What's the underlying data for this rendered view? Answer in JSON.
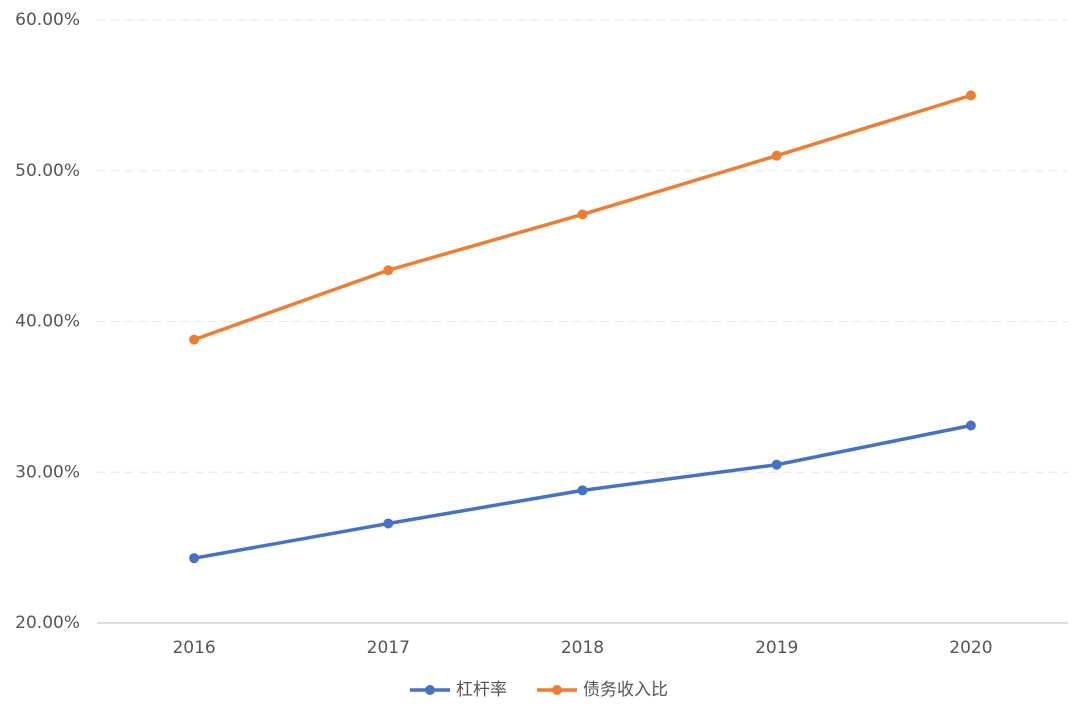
{
  "chart_data": {
    "type": "line",
    "categories": [
      "2016",
      "2017",
      "2018",
      "2019",
      "2020"
    ],
    "series": [
      {
        "name": "杠杆率",
        "color": "#4472c4",
        "values": [
          24.3,
          26.6,
          28.8,
          30.5,
          33.1
        ]
      },
      {
        "name": "债务收入比",
        "color": "#ed7d31",
        "values": [
          38.8,
          43.4,
          47.1,
          51.0,
          55.0
        ]
      }
    ],
    "ylim": [
      20,
      60
    ],
    "yticks": [
      {
        "value": 20,
        "label": "20.00%"
      },
      {
        "value": 30,
        "label": "30.00%"
      },
      {
        "value": 40,
        "label": "40.00%"
      },
      {
        "value": 50,
        "label": "50.00%"
      },
      {
        "value": 60,
        "label": "60.00%"
      }
    ],
    "grid": true,
    "legend": "bottom"
  }
}
